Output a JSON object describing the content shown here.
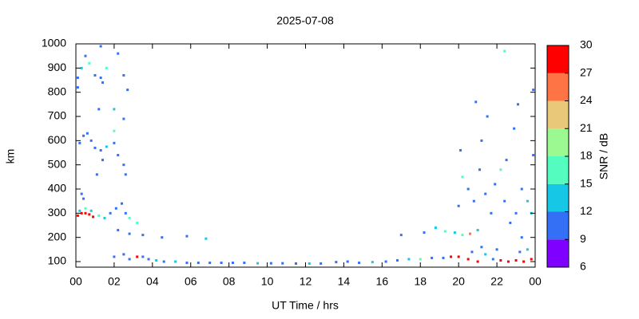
{
  "chart_data": {
    "type": "scatter",
    "title": "2025-07-08",
    "xlabel": "UT Time / hrs",
    "ylabel": "km",
    "colorbar_label": "SNR / dB",
    "xlim": [
      0,
      24
    ],
    "xticks": [
      {
        "value": 0,
        "label": "00"
      },
      {
        "value": 2,
        "label": "02"
      },
      {
        "value": 4,
        "label": "04"
      },
      {
        "value": 6,
        "label": "06"
      },
      {
        "value": 8,
        "label": "08"
      },
      10,
      12,
      14,
      16,
      18,
      20,
      22,
      {
        "value": 24,
        "label": "00"
      }
    ],
    "ylim": [
      77,
      1000
    ],
    "yticks": [
      100,
      200,
      300,
      400,
      500,
      600,
      700,
      800,
      900,
      1000
    ],
    "clim": [
      6,
      30
    ],
    "cticks": [
      6,
      9,
      12,
      15,
      18,
      21,
      24,
      27,
      30
    ],
    "colorscale": [
      "#8000ff",
      "#3370f5",
      "#16c8e6",
      "#55fcc0",
      "#9cf890",
      "#eac87a",
      "#ff7444",
      "#ff0000"
    ],
    "x": [
      0.1,
      0.3,
      0.5,
      0.7,
      0.9,
      0.2,
      0.5,
      0.8,
      1.2,
      1.5,
      1.8,
      2.1,
      2.4,
      2.6,
      2.8,
      0.4,
      0.3,
      0.2,
      0.4,
      0.6,
      0.8,
      1.0,
      1.3,
      1.6,
      2.0,
      2.2,
      2.5,
      2.6,
      1.1,
      1.4,
      0.1,
      0.3,
      0.5,
      0.7,
      1.0,
      1.3,
      1.6,
      1.4,
      2.2,
      2.5,
      2.7,
      0.1,
      1.3,
      1.2,
      2.0,
      2.5,
      2.0,
      2.0,
      2.5,
      2.8,
      3.2,
      3.5,
      3.8,
      4.2,
      4.6,
      5.2,
      5.8,
      6.4,
      7.0,
      7.6,
      8.2,
      8.8,
      9.5,
      10.2,
      10.8,
      11.5,
      12.2,
      12.8,
      13.6,
      14.2,
      14.8,
      15.5,
      16.2,
      16.8,
      17.4,
      18.0,
      18.6,
      19.2,
      19.6,
      2.2,
      2.8,
      3.2,
      3.5,
      4.5,
      5.8,
      6.8,
      17.0,
      18.2,
      18.8,
      19.3,
      19.8,
      20.2,
      20.6,
      21.0,
      20.0,
      20.5,
      21.0,
      21.4,
      21.8,
      22.2,
      22.6,
      23.0,
      23.4,
      23.8,
      20.7,
      21.2,
      22.0,
      23.2,
      23.6,
      20.2,
      20.5,
      20.8,
      21.1,
      21.4,
      21.7,
      21.2,
      21.5,
      21.9,
      22.2,
      22.5,
      22.4,
      22.7,
      23.0,
      23.3,
      23.6,
      23.9,
      23.8,
      22.9,
      23.1,
      22.4,
      23.9,
      23.3,
      20.1,
      20.9,
      20.0
    ],
    "values": [
      290,
      300,
      300,
      295,
      285,
      310,
      320,
      310,
      290,
      280,
      300,
      320,
      340,
      300,
      280,
      360,
      380,
      590,
      620,
      630,
      600,
      570,
      560,
      575,
      590,
      540,
      500,
      460,
      460,
      520,
      860,
      900,
      950,
      920,
      870,
      860,
      900,
      840,
      960,
      870,
      810,
      820,
      990,
      730,
      730,
      690,
      640,
      120,
      130,
      110,
      120,
      120,
      110,
      105,
      100,
      100,
      95,
      95,
      95,
      95,
      95,
      95,
      93,
      93,
      93,
      92,
      92,
      92,
      98,
      100,
      95,
      98,
      100,
      105,
      110,
      110,
      115,
      115,
      120,
      230,
      215,
      260,
      210,
      200,
      205,
      195,
      210,
      220,
      240,
      225,
      220,
      210,
      215,
      230,
      120,
      110,
      100,
      130,
      110,
      105,
      100,
      105,
      100,
      110,
      140,
      160,
      150,
      140,
      150,
      450,
      400,
      350,
      480,
      380,
      300,
      600,
      700,
      420,
      480,
      520,
      350,
      260,
      300,
      400,
      350,
      540,
      300,
      650,
      750,
      970,
      810,
      200,
      560,
      760,
      330
    ],
    "snr": [
      28,
      28,
      27,
      29,
      27,
      14,
      16,
      13,
      15,
      14,
      11,
      10,
      11,
      10,
      17,
      10,
      10,
      10,
      11,
      10,
      11,
      10,
      11,
      13,
      10,
      10,
      10,
      10,
      10,
      10,
      10,
      14,
      10,
      16,
      10,
      11,
      17,
      10,
      10,
      10,
      10,
      10,
      10,
      10,
      13,
      10,
      15,
      10,
      11,
      10,
      28,
      10,
      10,
      13,
      10,
      12,
      10,
      11,
      10,
      10,
      11,
      10,
      13,
      10,
      11,
      10,
      13,
      10,
      10,
      11,
      10,
      13,
      10,
      11,
      13,
      16,
      10,
      11,
      28,
      10,
      10,
      16,
      10,
      10,
      10,
      13,
      10,
      10,
      13,
      15,
      14,
      15,
      26,
      14,
      28,
      27,
      28,
      13,
      10,
      28,
      27,
      28,
      29,
      28,
      10,
      10,
      11,
      10,
      13,
      15,
      10,
      10,
      11,
      10,
      10,
      10,
      10,
      10,
      16,
      10,
      11,
      10,
      10,
      10,
      13,
      10,
      14,
      10,
      10,
      15,
      10,
      10,
      10,
      10,
      10
    ]
  }
}
